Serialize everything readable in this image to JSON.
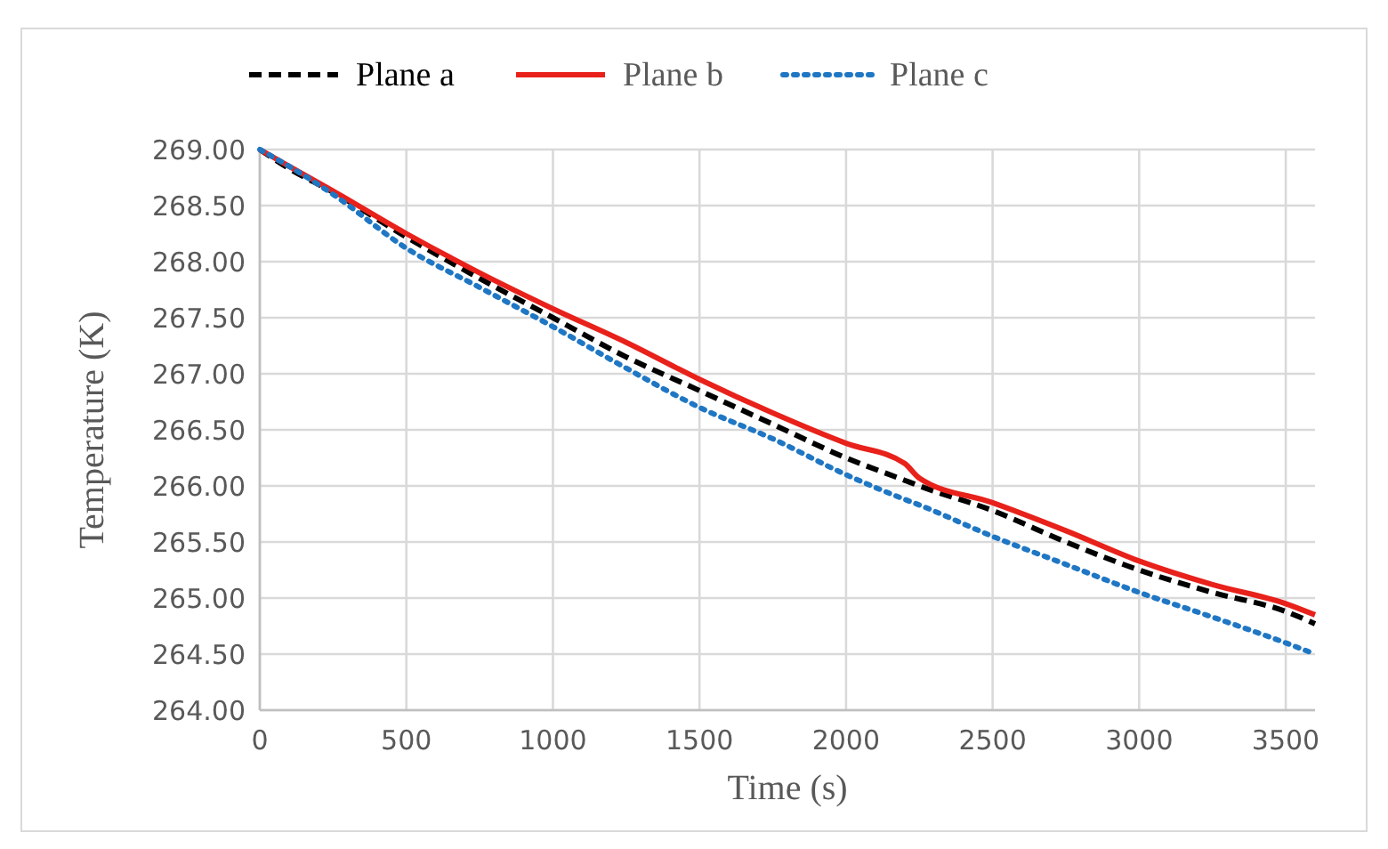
{
  "chart_data": {
    "type": "line",
    "xlabel": "Time (s)",
    "ylabel": "Temperature (K)",
    "x": [
      0,
      100,
      250,
      500,
      750,
      1000,
      1250,
      1500,
      1750,
      2000,
      2200,
      2250,
      2500,
      2750,
      3000,
      3250,
      3500,
      3600
    ],
    "series": [
      {
        "name": "Plane a",
        "color": "#000000",
        "line_style": "dashed",
        "values": [
          269.0,
          268.83,
          268.62,
          268.22,
          267.85,
          267.5,
          267.15,
          266.85,
          266.55,
          266.25,
          266.05,
          266.0,
          265.78,
          265.5,
          265.25,
          265.05,
          264.88,
          264.77
        ]
      },
      {
        "name": "Plane b",
        "color": "#e8211b",
        "line_style": "solid",
        "values": [
          269.0,
          268.85,
          268.63,
          268.25,
          267.9,
          267.58,
          267.28,
          266.95,
          266.65,
          266.38,
          266.2,
          266.07,
          265.85,
          265.6,
          265.33,
          265.12,
          264.95,
          264.85
        ]
      },
      {
        "name": "Plane c",
        "color": "#1f77c4",
        "line_style": "dotted",
        "values": [
          269.0,
          268.85,
          268.6,
          268.12,
          267.77,
          267.42,
          267.05,
          266.7,
          266.42,
          266.1,
          265.88,
          265.83,
          265.55,
          265.3,
          265.05,
          264.83,
          264.6,
          264.5
        ]
      }
    ],
    "xlim": [
      0,
      3600
    ],
    "xticks": [
      0,
      500,
      1000,
      1500,
      2000,
      2500,
      3000,
      3500
    ],
    "ylim": [
      264,
      269
    ],
    "yticks": [
      {
        "value": 264,
        "label": "264.00"
      },
      {
        "value": 264.5,
        "label": "264.50"
      },
      {
        "value": 265,
        "label": "265.00"
      },
      {
        "value": 265.5,
        "label": "265.50"
      },
      {
        "value": 266,
        "label": "266.00"
      },
      {
        "value": 266.5,
        "label": "266.50"
      },
      {
        "value": 267,
        "label": "267.00"
      },
      {
        "value": 267.5,
        "label": "267.50"
      },
      {
        "value": 268,
        "label": "268.00"
      },
      {
        "value": 268.5,
        "label": "268.50"
      },
      {
        "value": 269,
        "label": "269.00"
      }
    ],
    "grid": true,
    "legend": "top",
    "marker": "none"
  }
}
